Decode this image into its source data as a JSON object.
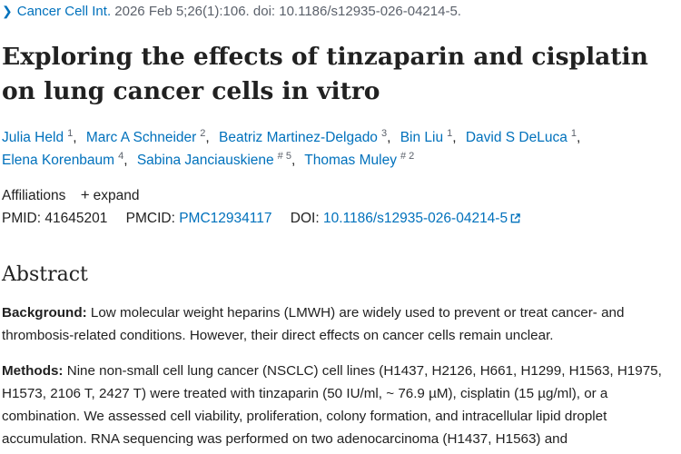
{
  "header": {
    "journal": "Cancer Cell Int.",
    "citation": "2026 Feb 5;26(1):106. doi: 10.1186/s12935-026-04214-5."
  },
  "title": "Exploring the effects of tinzaparin and cisplatin on lung cancer cells in vitro",
  "authors": [
    {
      "name": "Julia Held",
      "aff": "1"
    },
    {
      "name": "Marc A Schneider",
      "aff": "2"
    },
    {
      "name": "Beatriz Martinez-Delgado",
      "aff": "3"
    },
    {
      "name": "Bin Liu",
      "aff": "1"
    },
    {
      "name": "David S DeLuca",
      "aff": "1"
    },
    {
      "name": "Elena Korenbaum",
      "aff": "4"
    },
    {
      "name": "Sabina Janciauskiene",
      "aff": "# 5"
    },
    {
      "name": "Thomas Muley",
      "aff": "# 2"
    }
  ],
  "affiliations": {
    "label": "Affiliations",
    "expand_label": "expand"
  },
  "identifiers": {
    "pmid_label": "PMID:",
    "pmid": "41645201",
    "pmcid_label": "PMCID:",
    "pmcid": "PMC12934117",
    "doi_label": "DOI:",
    "doi": "10.1186/s12935-026-04214-5"
  },
  "abstract": {
    "heading": "Abstract",
    "background_label": "Background:",
    "background_text": " Low molecular weight heparins (LMWH) are widely used to prevent or treat cancer- and thrombosis-related conditions. However, their direct effects on cancer cells remain unclear.",
    "methods_label": "Methods:",
    "methods_text": " Nine non-small cell lung cancer (NSCLC) cell lines (H1437, H2126, H661, H1299, H1563, H1975, H1573, 2106 T, 2427 T) were treated with tinzaparin (50 IU/ml, ~ 76.9 µM), cisplatin (15 µg/ml), or a combination. We assessed cell viability, proliferation, colony formation, and intracellular lipid droplet accumulation. RNA sequencing was performed on two adenocarcinoma (H1437, H1563) and"
  }
}
